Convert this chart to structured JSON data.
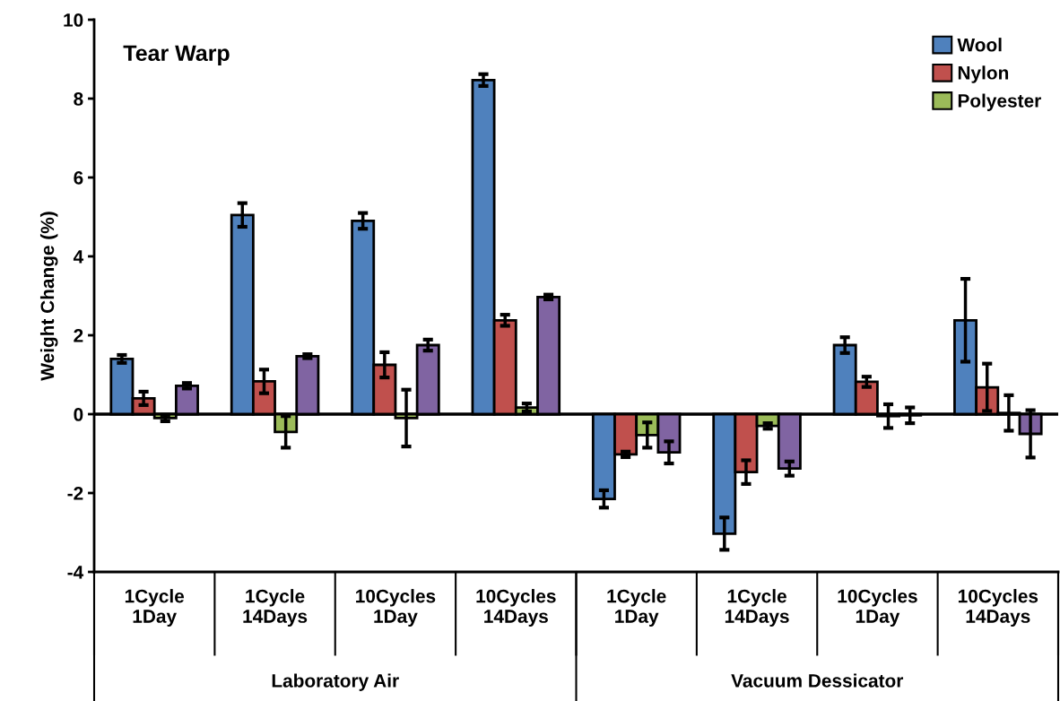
{
  "chart_data": {
    "type": "bar",
    "title": "Tear Warp",
    "ylabel": "Weight Change (%)",
    "categories": [
      "1Cycle\n1Day",
      "1Cycle\n14Days",
      "10Cycles\n1Day",
      "10Cycles\n14Days",
      "1Cycle\n1Day",
      "1Cycle\n14Days",
      "10Cycles\n1Day",
      "10Cycles\n14Days"
    ],
    "series": [
      {
        "name": "Wool",
        "color": "#4f81bd",
        "values": [
          1.4,
          5.05,
          4.9,
          8.47,
          -2.15,
          -3.03,
          1.75,
          2.38
        ],
        "errors": [
          0.1,
          0.3,
          0.2,
          0.15,
          0.22,
          0.41,
          0.2,
          1.05
        ]
      },
      {
        "name": "Nylon",
        "color": "#c0504d",
        "values": [
          0.4,
          0.83,
          1.25,
          2.38,
          -1.02,
          -1.47,
          0.82,
          0.68
        ],
        "errors": [
          0.17,
          0.3,
          0.32,
          0.14,
          0.07,
          0.3,
          0.13,
          0.6
        ]
      },
      {
        "name": "Polyester",
        "color": "#9bbb59",
        "values": [
          -0.1,
          -0.45,
          -0.1,
          0.17,
          -0.53,
          -0.3,
          -0.05,
          0.03
        ],
        "errors": [
          0.08,
          0.4,
          0.72,
          0.1,
          0.32,
          0.07,
          0.3,
          0.45
        ]
      },
      {
        "color": "#8064a2",
        "values": [
          0.72,
          1.47,
          1.75,
          2.97,
          -0.97,
          -1.38,
          -0.03,
          -0.5
        ],
        "errors": [
          0.07,
          0.05,
          0.14,
          0.06,
          0.28,
          0.18,
          0.2,
          0.6
        ]
      }
    ],
    "annotations": [
      "Laboratory Air",
      "Vacuum Dessicator"
    ],
    "ylim": [
      -4,
      10
    ],
    "yticks": [
      -4,
      -2,
      0,
      2,
      4,
      6,
      8,
      10
    ],
    "ref_lines": [
      {
        "axis": "y",
        "value": 0,
        "color": "#000000"
      }
    ],
    "legend": "top right"
  }
}
